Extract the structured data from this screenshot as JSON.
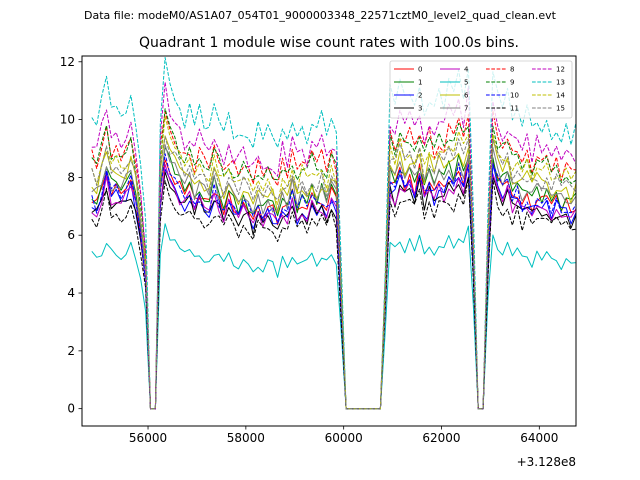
{
  "figure": {
    "suptitle": "Data file: modeM0/AS1A07_054T01_9000003348_22571cztM0_level2_quad_clean.evt"
  },
  "chart_data": {
    "type": "line",
    "title": "Quadrant 1 module wise count rates with 100.0s bins.",
    "xlabel": "",
    "ylabel": "",
    "x_offset_label": "+3.128e8",
    "xlim": [
      54650,
      64750
    ],
    "ylim": [
      -0.6,
      12.2
    ],
    "xticks": [
      56000,
      58000,
      60000,
      62000,
      64000
    ],
    "xtick_labels": [
      "56000",
      "58000",
      "60000",
      "62000",
      "64000"
    ],
    "yticks": [
      0,
      2,
      4,
      6,
      8,
      10,
      12
    ],
    "ytick_labels": [
      "0",
      "2",
      "4",
      "6",
      "8",
      "10",
      "12"
    ],
    "legend_location": "top-right",
    "x_start": 54850,
    "x_step": 100,
    "rate_factor": [
      1.0,
      1.03,
      0.97,
      0.95,
      0.96,
      0.72,
      1.08,
      1.04,
      1.19,
      1.17,
      0.99,
      0.9,
      1.26,
      1.38,
      1.13,
      1.1
    ],
    "base_profile": [
      7.3,
      7.1,
      7.6,
      8.2,
      7.5,
      7.6,
      7.3,
      7.6,
      7.9,
      7.2,
      6.1,
      4.5,
      0.0,
      0.0,
      7.4,
      8.7,
      8.2,
      7.9,
      7.6,
      7.3,
      7.6,
      7.1,
      7.5,
      7.2,
      7.0,
      7.6,
      7.2,
      6.9,
      7.3,
      7.0,
      6.8,
      7.1,
      6.9,
      6.6,
      7.0,
      6.7,
      6.9,
      6.8,
      6.5,
      7.1,
      6.9,
      7.4,
      6.8,
      7.2,
      6.9,
      7.3,
      7.0,
      7.3,
      6.9,
      7.4,
      7.1,
      3.5,
      0.0,
      0.0,
      0.0,
      0.0,
      0.0,
      0.0,
      0.0,
      0.0,
      3.6,
      7.9,
      7.6,
      8.1,
      7.7,
      8.0,
      7.6,
      8.2,
      7.4,
      7.9,
      7.5,
      7.9,
      7.7,
      8.1,
      7.8,
      8.3,
      7.9,
      8.6,
      5.0,
      0.0,
      0.0,
      5.2,
      8.6,
      7.9,
      7.6,
      7.8,
      7.3,
      7.5,
      7.1,
      7.4,
      7.0,
      7.3,
      7.1,
      7.3,
      7.0,
      7.2,
      6.9,
      7.1,
      6.8,
      7.0,
      6.9,
      4.1
    ],
    "series": [
      {
        "name": "0",
        "color": "#ff0000",
        "dash": "solid"
      },
      {
        "name": "1",
        "color": "#008000",
        "dash": "solid"
      },
      {
        "name": "2",
        "color": "#0000ff",
        "dash": "solid"
      },
      {
        "name": "3",
        "color": "#000000",
        "dash": "solid"
      },
      {
        "name": "4",
        "color": "#bf00bf",
        "dash": "solid"
      },
      {
        "name": "5",
        "color": "#00bfbf",
        "dash": "solid"
      },
      {
        "name": "6",
        "color": "#bfbf00",
        "dash": "solid"
      },
      {
        "name": "7",
        "color": "#808080",
        "dash": "solid"
      },
      {
        "name": "8",
        "color": "#ff0000",
        "dash": "dashed"
      },
      {
        "name": "9",
        "color": "#008000",
        "dash": "dashed"
      },
      {
        "name": "10",
        "color": "#0000ff",
        "dash": "dashed"
      },
      {
        "name": "11",
        "color": "#000000",
        "dash": "dashed"
      },
      {
        "name": "12",
        "color": "#bf00bf",
        "dash": "dashed"
      },
      {
        "name": "13",
        "color": "#00bfbf",
        "dash": "dashed"
      },
      {
        "name": "14",
        "color": "#bfbf00",
        "dash": "dashed"
      },
      {
        "name": "15",
        "color": "#808080",
        "dash": "dashed"
      }
    ]
  }
}
